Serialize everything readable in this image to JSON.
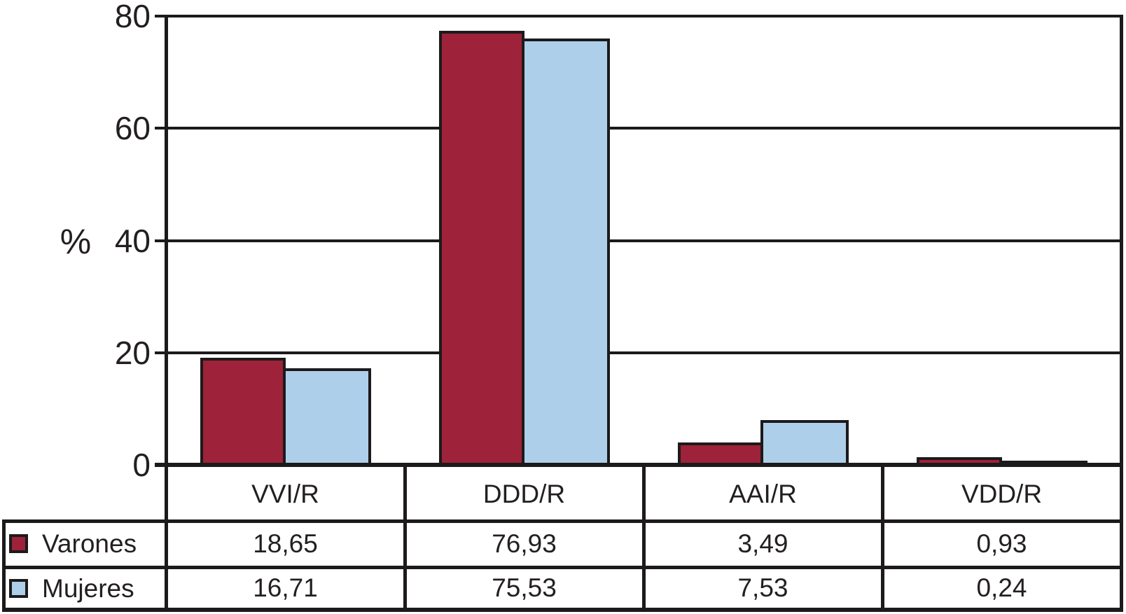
{
  "chart_data": {
    "type": "bar",
    "title": "",
    "ylabel": "%",
    "xlabel": "",
    "ylim": [
      0,
      80
    ],
    "yticks": [
      "0",
      "20",
      "40",
      "60",
      "80"
    ],
    "grid": true,
    "legend_position": "table-left",
    "categories": [
      "VVI/R",
      "DDD/R",
      "AAI/R",
      "VDD/R"
    ],
    "series": [
      {
        "name": "Varones",
        "color": "#9e2239",
        "values": [
          18.65,
          76.93,
          3.49,
          0.93
        ],
        "display_values": [
          "18,65",
          "76,93",
          "3,49",
          "0,93"
        ]
      },
      {
        "name": "Mujeres",
        "color": "#adcfea",
        "values": [
          16.71,
          75.53,
          7.53,
          0.24
        ],
        "display_values": [
          "16,71",
          "75,53",
          "7,53",
          "0,24"
        ]
      }
    ]
  },
  "colors": {
    "line": "#1d1a1b",
    "text": "#231f20",
    "varones": "#9e2239",
    "mujeres": "#adcfea",
    "background": "#ffffff"
  }
}
